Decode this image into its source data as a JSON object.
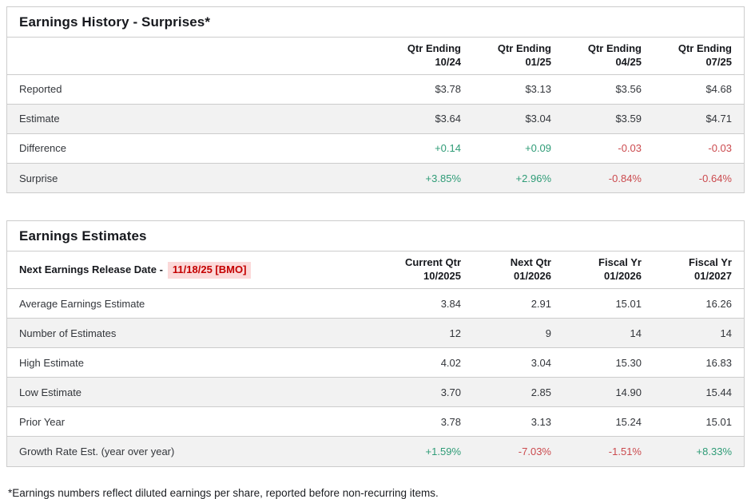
{
  "history_table": {
    "title": "Earnings History - Surprises*",
    "columns": [
      {
        "line1": "Qtr Ending",
        "line2": "10/24"
      },
      {
        "line1": "Qtr Ending",
        "line2": "01/25"
      },
      {
        "line1": "Qtr Ending",
        "line2": "04/25"
      },
      {
        "line1": "Qtr Ending",
        "line2": "07/25"
      }
    ],
    "rows": [
      {
        "label": "Reported",
        "values": [
          "$3.78",
          "$3.13",
          "$3.56",
          "$4.68"
        ]
      },
      {
        "label": "Estimate",
        "values": [
          "$3.64",
          "$3.04",
          "$3.59",
          "$4.71"
        ]
      },
      {
        "label": "Difference",
        "values": [
          "+0.14",
          "+0.09",
          "-0.03",
          "-0.03"
        ]
      },
      {
        "label": "Surprise",
        "values": [
          "+3.85%",
          "+2.96%",
          "-0.84%",
          "-0.64%"
        ]
      }
    ]
  },
  "estimates_table": {
    "title": "Earnings Estimates",
    "release_label": "Next Earnings Release Date -",
    "release_date": "11/18/25 [BMO]",
    "columns": [
      {
        "line1": "Current Qtr",
        "line2": "10/2025"
      },
      {
        "line1": "Next Qtr",
        "line2": "01/2026"
      },
      {
        "line1": "Fiscal Yr",
        "line2": "01/2026"
      },
      {
        "line1": "Fiscal Yr",
        "line2": "01/2027"
      }
    ],
    "rows": [
      {
        "label": "Average Earnings Estimate",
        "values": [
          "3.84",
          "2.91",
          "15.01",
          "16.26"
        ]
      },
      {
        "label": "Number of Estimates",
        "values": [
          "12",
          "9",
          "14",
          "14"
        ]
      },
      {
        "label": "High Estimate",
        "values": [
          "4.02",
          "3.04",
          "15.30",
          "16.83"
        ]
      },
      {
        "label": "Low Estimate",
        "values": [
          "3.70",
          "2.85",
          "14.90",
          "15.44"
        ]
      },
      {
        "label": "Prior Year",
        "values": [
          "3.78",
          "3.13",
          "15.24",
          "15.01"
        ]
      },
      {
        "label": "Growth Rate Est. (year over year)",
        "values": [
          "+1.59%",
          "-7.03%",
          "-1.51%",
          "+8.33%"
        ]
      }
    ]
  },
  "footnote": "*Earnings numbers reflect diluted earnings per share, reported before non-recurring items.",
  "colors": {
    "positive": "#2f9c77",
    "negative": "#cb4a4e",
    "release_date_text": "#c40000",
    "release_date_background": "#fbd9d9",
    "alternate_row_background": "#f2f2f2",
    "table_border": "#cccccc"
  }
}
